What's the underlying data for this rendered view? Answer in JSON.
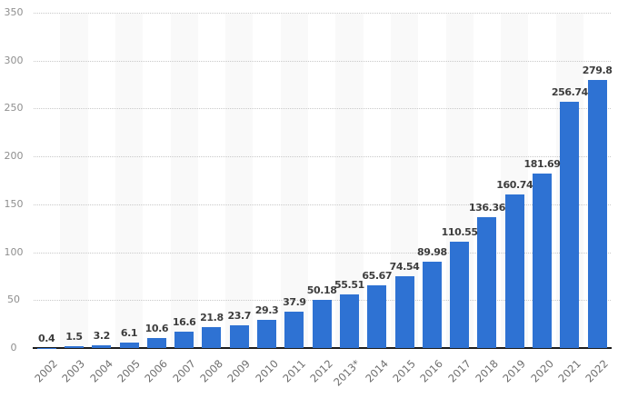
{
  "chart_data": {
    "type": "bar",
    "title": "",
    "xlabel": "",
    "ylabel": "",
    "categories": [
      "2002",
      "2003",
      "2004",
      "2005",
      "2006",
      "2007",
      "2008",
      "2009",
      "2010",
      "2011",
      "2012",
      "2013*",
      "2014",
      "2015",
      "2016",
      "2017",
      "2018",
      "2019",
      "2020",
      "2021",
      "2022"
    ],
    "values": [
      0.4,
      1.5,
      3.2,
      6.1,
      10.6,
      16.6,
      21.8,
      23.7,
      29.3,
      37.9,
      50.18,
      55.51,
      65.67,
      74.54,
      89.98,
      110.55,
      136.36,
      160.74,
      181.69,
      256.74,
      279.8
    ],
    "value_labels": [
      "0.4",
      "1.5",
      "3.2",
      "6.1",
      "10.6",
      "16.6",
      "21.8",
      "23.7",
      "29.3",
      "37.9",
      "50.18",
      "55.51",
      "65.67",
      "74.54",
      "89.98",
      "110.55",
      "136.36",
      "160.74",
      "181.69",
      "256.74",
      "279.8"
    ],
    "ylim": [
      0,
      350
    ],
    "yticks": [
      0,
      50,
      100,
      150,
      200,
      250,
      300,
      350
    ],
    "grid": "horizontal-dotted",
    "legend": "none",
    "plot_bands": "alternating-vertical",
    "colors": {
      "bar": "#2e72d3",
      "value_label": "#3d3d3d",
      "y_tick_label": "#8f8f8f",
      "x_tick_label": "#6f6f6f",
      "gridline": "#c9c9c9",
      "plot_band": "#f9f9f9",
      "axis_line": "#1c1c1c",
      "background": "#ffffff"
    }
  }
}
